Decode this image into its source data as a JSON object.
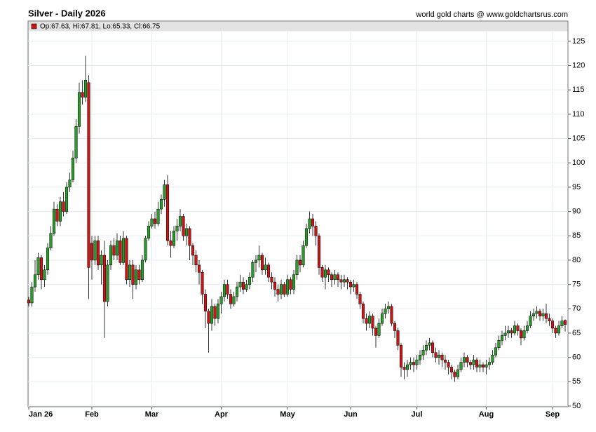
{
  "chart_data": {
    "type": "candlestick",
    "title": "Silver - Daily 2026",
    "source": "world gold charts @ www.goldchartsrus.com",
    "legend_text": "Op:67.63, Hi:67.81, Lo:65.33, Cl:66.75",
    "up_color": "#2a9a2a",
    "down_color": "#cc1414",
    "grid": true,
    "ylim": [
      50,
      127
    ],
    "yticks": [
      50,
      55,
      60,
      65,
      70,
      75,
      80,
      85,
      90,
      95,
      100,
      105,
      110,
      115,
      120,
      125
    ],
    "categories": [
      "Jan 26",
      null,
      null,
      null,
      null,
      null,
      null,
      null,
      null,
      null,
      null,
      null,
      null,
      null,
      null,
      null,
      null,
      null,
      null,
      null,
      "Feb",
      null,
      null,
      null,
      null,
      null,
      null,
      null,
      null,
      null,
      null,
      null,
      null,
      null,
      null,
      null,
      null,
      null,
      null,
      "Mar",
      null,
      null,
      null,
      null,
      null,
      null,
      null,
      null,
      null,
      null,
      null,
      null,
      null,
      null,
      null,
      null,
      null,
      null,
      null,
      null,
      null,
      "Apr",
      null,
      null,
      null,
      null,
      null,
      null,
      null,
      null,
      null,
      null,
      null,
      null,
      null,
      null,
      null,
      null,
      null,
      null,
      null,
      null,
      "May",
      null,
      null,
      null,
      null,
      null,
      null,
      null,
      null,
      null,
      null,
      null,
      null,
      null,
      null,
      null,
      null,
      null,
      null,
      null,
      "Jun",
      null,
      null,
      null,
      null,
      null,
      null,
      null,
      null,
      null,
      null,
      null,
      null,
      null,
      null,
      null,
      null,
      null,
      null,
      null,
      null,
      "Jul",
      null,
      null,
      null,
      null,
      null,
      null,
      null,
      null,
      null,
      null,
      null,
      null,
      null,
      null,
      null,
      null,
      null,
      null,
      null,
      null,
      null,
      "Aug",
      null,
      null,
      null,
      null,
      null,
      null,
      null,
      null,
      null,
      null,
      null,
      null,
      null,
      null,
      null,
      null,
      null,
      null,
      null,
      null,
      "Sep",
      null,
      null,
      null,
      null
    ],
    "open": [
      71.8,
      71.2,
      74.5,
      77,
      80.5,
      76,
      78,
      82.5,
      85.5,
      90.5,
      88,
      92,
      90,
      95,
      96.5,
      101,
      107.5,
      114.5,
      113.5,
      116.5,
      83.5,
      80,
      84,
      79,
      81,
      71.5,
      79,
      83,
      81,
      84,
      79.5,
      84.5,
      76,
      79,
      75,
      78,
      76,
      80,
      84.5,
      87,
      88.5,
      87.5,
      90.5,
      92.5,
      95.5,
      84,
      83,
      86,
      87,
      89,
      85,
      86.5,
      83,
      81,
      79,
      77.5,
      73,
      69.5,
      67,
      70.5,
      68,
      71,
      72.5,
      75,
      73,
      71,
      72.5,
      74.5,
      75.5,
      74,
      75,
      76.5,
      79.5,
      80,
      81,
      78,
      79,
      76.5,
      75.5,
      74,
      73,
      75,
      73,
      76,
      74,
      77,
      80,
      79,
      83,
      86.5,
      88.5,
      87,
      85,
      78.5,
      76.5,
      78,
      77,
      76,
      77,
      76,
      75.5,
      76,
      75.5,
      74.5,
      75,
      73,
      71,
      68,
      67,
      68.5,
      66,
      64.5,
      67,
      69,
      70,
      70.5,
      67,
      65.5,
      62.5,
      58,
      57.5,
      58.5,
      59,
      58.5,
      59.5,
      60.5,
      61.5,
      62.5,
      63,
      61,
      60,
      60.5,
      59.5,
      59,
      58,
      57,
      56,
      57.5,
      59,
      60,
      59,
      58.5,
      59.5,
      58,
      58.5,
      58,
      58.5,
      59,
      60.5,
      62,
      63.5,
      64.5,
      65,
      65.5,
      65,
      66.5,
      65.5,
      64,
      65.5,
      66.5,
      68.5,
      69,
      69.5,
      68.5,
      69,
      68,
      67.5,
      66,
      65,
      66.5,
      67.63
    ],
    "high": [
      72.5,
      75.5,
      80,
      81.5,
      81,
      79,
      83.5,
      87,
      92,
      91.5,
      93,
      94,
      96,
      98,
      102.5,
      109,
      116.5,
      117,
      122,
      118,
      85,
      85,
      85,
      82,
      84,
      80,
      84,
      84.5,
      85.5,
      85,
      86,
      85,
      80,
      80,
      79,
      79,
      81,
      85,
      88,
      89.5,
      90,
      92,
      93.5,
      96.5,
      97.5,
      86,
      87,
      88.5,
      90.5,
      89.5,
      87.5,
      87,
      83.5,
      82,
      80,
      78,
      74,
      70,
      72,
      71,
      72,
      73.5,
      76,
      76,
      74,
      73.5,
      75.5,
      77,
      76.5,
      76,
      77.5,
      80,
      81,
      83,
      81.5,
      80.5,
      79.5,
      77.5,
      76.5,
      75,
      76,
      75.5,
      77,
      76.5,
      78,
      81,
      81,
      84,
      87.5,
      90,
      89.5,
      88,
      85.5,
      79,
      79,
      78.5,
      77.5,
      78,
      77.5,
      77,
      77,
      76.5,
      76,
      76,
      75.5,
      73.5,
      71.5,
      69,
      69.5,
      69,
      66.5,
      68,
      70,
      71,
      71.5,
      71,
      67.5,
      66,
      63,
      59,
      59.5,
      60,
      60,
      60.5,
      61.5,
      62.5,
      63.5,
      64,
      63.5,
      62,
      61.5,
      61,
      60.5,
      59.5,
      58.5,
      57.5,
      58.5,
      60,
      61,
      60.5,
      59.5,
      60.5,
      60,
      59.5,
      59,
      59.5,
      60,
      61.5,
      63,
      64.5,
      65.5,
      66.5,
      66.5,
      66,
      67.5,
      67,
      66,
      66.5,
      67.5,
      69.5,
      70,
      70.5,
      70,
      70,
      71,
      69,
      68,
      66.5,
      67.5,
      68.5,
      67.81
    ],
    "low": [
      70.5,
      70.5,
      73.5,
      76,
      74,
      74.5,
      77,
      82,
      85,
      87,
      87,
      89,
      89.5,
      94,
      96,
      100,
      106,
      112,
      112.5,
      72,
      76,
      79,
      78,
      75,
      64,
      70.5,
      78,
      80,
      80,
      79,
      79,
      75,
      74.5,
      72,
      74,
      75,
      75.5,
      79.5,
      84,
      86.5,
      86.5,
      87,
      89.5,
      91,
      83,
      80.5,
      82.5,
      84,
      86,
      84,
      83,
      80,
      79,
      77.5,
      75,
      71,
      66,
      61,
      65.5,
      66.5,
      67,
      69,
      71.5,
      72,
      70,
      70.5,
      71.5,
      73.5,
      73,
      73.5,
      74,
      75.5,
      77.5,
      78.5,
      77,
      77,
      75.5,
      74,
      72.5,
      71.5,
      72,
      72.5,
      72.5,
      73,
      73,
      76,
      77.5,
      78.5,
      82.5,
      85.5,
      85,
      83,
      77,
      75.5,
      74,
      75.5,
      74.5,
      75,
      74.5,
      74,
      74.5,
      74,
      73,
      73.5,
      72,
      70,
      67,
      65.5,
      66,
      64.5,
      62,
      64,
      66.5,
      68,
      69,
      66.5,
      64,
      61.5,
      56,
      55.5,
      56,
      57.5,
      57,
      57.5,
      58.5,
      59.5,
      60.5,
      61.5,
      60,
      59,
      58.5,
      58,
      57.5,
      56.5,
      55.5,
      55,
      55.5,
      57,
      58,
      58,
      57.5,
      57.5,
      57,
      57,
      57,
      56.5,
      57.5,
      58.5,
      60,
      61.5,
      62.5,
      63.5,
      64,
      64,
      64.5,
      64.5,
      62.5,
      63.5,
      65,
      66,
      67.5,
      68,
      67.5,
      67.5,
      67,
      66.5,
      65,
      64,
      64.5,
      66,
      65.33
    ],
    "close": [
      71.2,
      74.5,
      77,
      80.5,
      76,
      78,
      82.5,
      85.5,
      90.5,
      88,
      92,
      90,
      95,
      96.5,
      101,
      107.5,
      114.5,
      113.5,
      117,
      78.5,
      80,
      84,
      79,
      81,
      71.5,
      79,
      83,
      81,
      84,
      79.5,
      84.5,
      76,
      79,
      75,
      78,
      76,
      80,
      84.5,
      87,
      88.5,
      87.5,
      90.5,
      92.5,
      95.5,
      84,
      83,
      86,
      87,
      89,
      85,
      86.5,
      83,
      81,
      79,
      77.5,
      73,
      69.5,
      67,
      70.5,
      68,
      71,
      72.5,
      75,
      73,
      71,
      72.5,
      74.5,
      75.5,
      74,
      75,
      76.5,
      79.5,
      80,
      81,
      78,
      79,
      76.5,
      75.5,
      74,
      73,
      75,
      73,
      76,
      74,
      77,
      80,
      79,
      83,
      86.5,
      88.5,
      87,
      85,
      78.5,
      76.5,
      78,
      77,
      76,
      77,
      76,
      75.5,
      76,
      75.5,
      74.5,
      75,
      73,
      71,
      68,
      67,
      68.5,
      66,
      64.5,
      67,
      69,
      70,
      70.5,
      67,
      65.5,
      62.5,
      58,
      57.5,
      58.5,
      59,
      58.5,
      59.5,
      60.5,
      61.5,
      62.5,
      63,
      61,
      60,
      60.5,
      59.5,
      59,
      58,
      57,
      56,
      57.5,
      59,
      60,
      59,
      58.5,
      59.5,
      58,
      58.5,
      58,
      58.5,
      59,
      60.5,
      62,
      63.5,
      64.5,
      65,
      65.5,
      65,
      66.5,
      65.5,
      64,
      65.5,
      66.5,
      68.5,
      69,
      69.5,
      68.5,
      69,
      68,
      67.5,
      66,
      65,
      66.5,
      67.5,
      66.75
    ]
  }
}
